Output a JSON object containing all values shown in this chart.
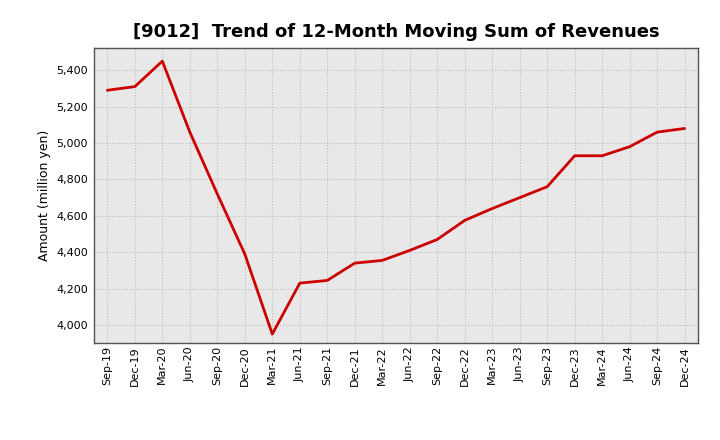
{
  "title": "[9012]  Trend of 12-Month Moving Sum of Revenues",
  "ylabel": "Amount (million yen)",
  "line_color": "#cc0000",
  "line_width": 2.0,
  "background_color": "#ffffff",
  "plot_bg_color": "#e8e8e8",
  "grid_color": "#bbbbbb",
  "spine_color": "#555555",
  "ylim": [
    3900,
    5520
  ],
  "yticks": [
    4000,
    4200,
    4400,
    4600,
    4800,
    5000,
    5200,
    5400
  ],
  "x_labels": [
    "Sep-19",
    "Dec-19",
    "Mar-20",
    "Jun-20",
    "Sep-20",
    "Dec-20",
    "Mar-21",
    "Jun-21",
    "Sep-21",
    "Dec-21",
    "Mar-22",
    "Jun-22",
    "Sep-22",
    "Dec-22",
    "Mar-23",
    "Jun-23",
    "Sep-23",
    "Dec-23",
    "Mar-24",
    "Jun-24",
    "Sep-24",
    "Dec-24"
  ],
  "y_values": [
    5290,
    5310,
    5450,
    5060,
    4720,
    4390,
    3950,
    4230,
    4245,
    4340,
    4355,
    4410,
    4470,
    4575,
    4640,
    4700,
    4760,
    4930,
    4930,
    4980,
    5060,
    5080
  ],
  "figsize": [
    7.2,
    4.4
  ],
  "dpi": 100,
  "title_fontsize": 13,
  "label_fontsize": 9,
  "tick_fontsize": 8
}
